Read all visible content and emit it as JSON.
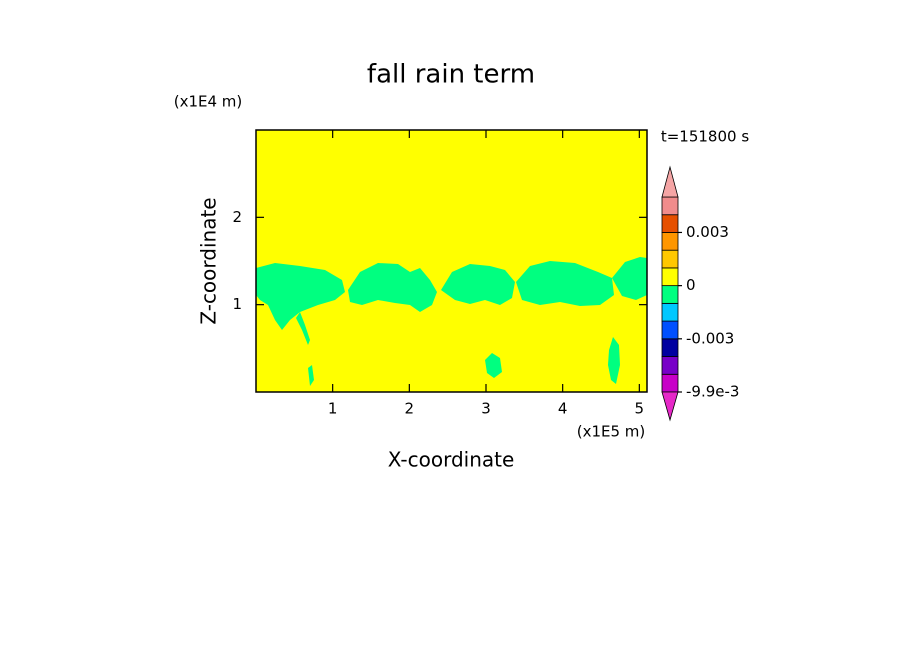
{
  "chart_data": {
    "type": "contour",
    "title": "fall rain term",
    "x_label": "X-coordinate",
    "y_label": "Z-coordinate",
    "x_unit": "(x1E5 m)",
    "y_unit": "(x1E4 m)",
    "annotation": "t=151800 s",
    "xlim": [
      0,
      5.1
    ],
    "xticks": [
      1,
      2,
      3,
      4,
      5
    ],
    "ylim": [
      0,
      3
    ],
    "yticks": [
      1,
      2
    ],
    "colorbar": {
      "boundaries": [
        -0.0099,
        -0.006,
        -0.004,
        -0.003,
        -0.002,
        -0.001,
        0,
        0.001,
        0.002,
        0.003,
        0.004,
        0.006
      ],
      "colors": [
        "#c800c8",
        "#7800c8",
        "#0000a0",
        "#0050ff",
        "#00c8ff",
        "#00ff80",
        "#ffff00",
        "#ffc800",
        "#ff9600",
        "#e65000",
        "#f08c8c"
      ],
      "under_color": "#e628c8",
      "over_color": "#f5a5a5",
      "ticks": [
        {
          "value": 0.003,
          "label": "0.003"
        },
        0,
        {
          "value": -0.003,
          "label": "-0.003"
        },
        {
          "value": -0.0099,
          "label": "-9.9e-3"
        }
      ]
    }
  }
}
